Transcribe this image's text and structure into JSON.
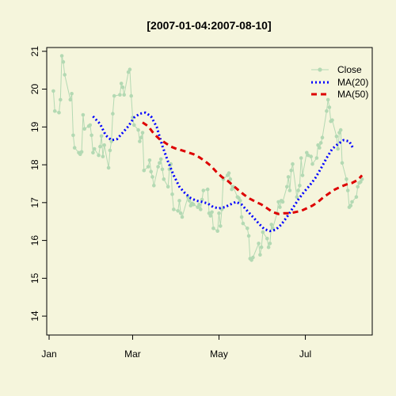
{
  "chart_data": {
    "type": "line",
    "title": "[2007-01-04:2007-08-10]",
    "xlabel": "",
    "ylabel": "",
    "x_range": [
      "2007-01-01",
      "2007-08-15"
    ],
    "ylim": [
      13.5,
      21.1
    ],
    "y_ticks": [
      14,
      15,
      16,
      17,
      18,
      19,
      20,
      21
    ],
    "x_ticks": [
      {
        "label": "Jan",
        "date": "2007-01-01"
      },
      {
        "label": "Mar",
        "date": "2007-03-01"
      },
      {
        "label": "May",
        "date": "2007-05-01"
      },
      {
        "label": "Jul",
        "date": "2007-07-01"
      }
    ],
    "grid": false,
    "legend": "top-right",
    "colors": {
      "background": "#f5f5dc",
      "close": "#b3d9b3",
      "ma20": "#0000ff",
      "ma50": "#dd0000",
      "axis": "#000000"
    },
    "series": [
      {
        "name": "Close",
        "style": "line-points",
        "color": "#b3d9b3",
        "points": [
          [
            "2007-01-04",
            19.95
          ],
          [
            "2007-01-05",
            19.42
          ],
          [
            "2007-01-08",
            19.38
          ],
          [
            "2007-01-09",
            19.72
          ],
          [
            "2007-01-10",
            20.88
          ],
          [
            "2007-01-11",
            20.72
          ],
          [
            "2007-01-12",
            20.38
          ],
          [
            "2007-01-16",
            19.72
          ],
          [
            "2007-01-17",
            19.88
          ],
          [
            "2007-01-18",
            18.78
          ],
          [
            "2007-01-19",
            18.45
          ],
          [
            "2007-01-22",
            18.32
          ],
          [
            "2007-01-23",
            18.28
          ],
          [
            "2007-01-24",
            18.34
          ],
          [
            "2007-01-25",
            19.32
          ],
          [
            "2007-01-26",
            18.95
          ],
          [
            "2007-01-29",
            19.02
          ],
          [
            "2007-01-30",
            19.05
          ],
          [
            "2007-01-31",
            18.78
          ],
          [
            "2007-02-01",
            18.32
          ],
          [
            "2007-02-02",
            18.42
          ],
          [
            "2007-02-05",
            18.25
          ],
          [
            "2007-02-06",
            18.48
          ],
          [
            "2007-02-07",
            18.76
          ],
          [
            "2007-02-08",
            18.22
          ],
          [
            "2007-02-09",
            18.52
          ],
          [
            "2007-02-12",
            17.92
          ],
          [
            "2007-02-13",
            18.38
          ],
          [
            "2007-02-14",
            18.62
          ],
          [
            "2007-02-15",
            19.35
          ],
          [
            "2007-02-16",
            19.82
          ],
          [
            "2007-02-20",
            19.85
          ],
          [
            "2007-02-21",
            20.15
          ],
          [
            "2007-02-22",
            20.05
          ],
          [
            "2007-02-23",
            19.85
          ],
          [
            "2007-02-26",
            20.45
          ],
          [
            "2007-02-27",
            20.52
          ],
          [
            "2007-02-28",
            19.82
          ],
          [
            "2007-03-01",
            19.25
          ],
          [
            "2007-03-02",
            19.05
          ],
          [
            "2007-03-05",
            18.92
          ],
          [
            "2007-03-06",
            18.62
          ],
          [
            "2007-03-07",
            18.72
          ],
          [
            "2007-03-08",
            18.85
          ],
          [
            "2007-03-09",
            17.85
          ],
          [
            "2007-03-12",
            17.95
          ],
          [
            "2007-03-13",
            18.12
          ],
          [
            "2007-03-14",
            17.82
          ],
          [
            "2007-03-15",
            17.68
          ],
          [
            "2007-03-16",
            17.45
          ],
          [
            "2007-03-19",
            17.95
          ],
          [
            "2007-03-20",
            18.05
          ],
          [
            "2007-03-21",
            18.15
          ],
          [
            "2007-03-22",
            17.88
          ],
          [
            "2007-03-23",
            17.62
          ],
          [
            "2007-03-26",
            17.42
          ],
          [
            "2007-03-27",
            17.88
          ],
          [
            "2007-03-28",
            18.02
          ],
          [
            "2007-03-29",
            17.22
          ],
          [
            "2007-03-30",
            16.82
          ],
          [
            "2007-04-02",
            16.78
          ],
          [
            "2007-04-03",
            17.05
          ],
          [
            "2007-04-04",
            16.72
          ],
          [
            "2007-04-05",
            16.62
          ],
          [
            "2007-04-09",
            17.15
          ],
          [
            "2007-04-10",
            17.05
          ],
          [
            "2007-04-11",
            16.92
          ],
          [
            "2007-04-12",
            16.98
          ],
          [
            "2007-04-13",
            16.95
          ],
          [
            "2007-04-16",
            16.88
          ],
          [
            "2007-04-17",
            16.95
          ],
          [
            "2007-04-18",
            16.82
          ],
          [
            "2007-04-19",
            17.08
          ],
          [
            "2007-04-20",
            17.32
          ],
          [
            "2007-04-23",
            17.35
          ],
          [
            "2007-04-24",
            16.72
          ],
          [
            "2007-04-25",
            16.65
          ],
          [
            "2007-04-26",
            16.75
          ],
          [
            "2007-04-27",
            16.32
          ],
          [
            "2007-04-30",
            16.25
          ],
          [
            "2007-05-01",
            16.72
          ],
          [
            "2007-05-02",
            16.38
          ],
          [
            "2007-05-03",
            16.82
          ],
          [
            "2007-05-04",
            17.62
          ],
          [
            "2007-05-07",
            17.72
          ],
          [
            "2007-05-08",
            17.78
          ],
          [
            "2007-05-09",
            17.62
          ],
          [
            "2007-05-10",
            17.35
          ],
          [
            "2007-05-11",
            17.42
          ],
          [
            "2007-05-14",
            17.15
          ],
          [
            "2007-05-15",
            17.12
          ],
          [
            "2007-05-16",
            17.05
          ],
          [
            "2007-05-17",
            16.62
          ],
          [
            "2007-05-18",
            16.45
          ],
          [
            "2007-05-21",
            16.32
          ],
          [
            "2007-05-22",
            16.12
          ],
          [
            "2007-05-23",
            15.52
          ],
          [
            "2007-05-24",
            15.48
          ],
          [
            "2007-05-25",
            15.55
          ],
          [
            "2007-05-29",
            15.92
          ],
          [
            "2007-05-30",
            15.62
          ],
          [
            "2007-05-31",
            15.82
          ],
          [
            "2007-06-01",
            16.22
          ],
          [
            "2007-06-04",
            16.05
          ],
          [
            "2007-06-05",
            15.82
          ],
          [
            "2007-06-06",
            15.92
          ],
          [
            "2007-06-07",
            16.42
          ],
          [
            "2007-06-08",
            16.32
          ],
          [
            "2007-06-11",
            16.72
          ],
          [
            "2007-06-12",
            17.02
          ],
          [
            "2007-06-13",
            16.88
          ],
          [
            "2007-06-14",
            17.05
          ],
          [
            "2007-06-15",
            17.02
          ],
          [
            "2007-06-18",
            17.42
          ],
          [
            "2007-06-19",
            17.68
          ],
          [
            "2007-06-20",
            17.32
          ],
          [
            "2007-06-21",
            17.85
          ],
          [
            "2007-06-22",
            18.02
          ],
          [
            "2007-06-25",
            17.15
          ],
          [
            "2007-06-26",
            17.32
          ],
          [
            "2007-06-27",
            17.45
          ],
          [
            "2007-06-28",
            18.18
          ],
          [
            "2007-06-29",
            17.72
          ],
          [
            "2007-07-02",
            18.32
          ],
          [
            "2007-07-03",
            18.25
          ],
          [
            "2007-07-05",
            18.22
          ],
          [
            "2007-07-06",
            18.02
          ],
          [
            "2007-07-09",
            18.18
          ],
          [
            "2007-07-10",
            18.52
          ],
          [
            "2007-07-11",
            18.45
          ],
          [
            "2007-07-12",
            18.58
          ],
          [
            "2007-07-13",
            18.72
          ],
          [
            "2007-07-16",
            19.42
          ],
          [
            "2007-07-17",
            19.72
          ],
          [
            "2007-07-18",
            19.52
          ],
          [
            "2007-07-19",
            19.15
          ],
          [
            "2007-07-20",
            19.18
          ],
          [
            "2007-07-23",
            18.75
          ],
          [
            "2007-07-24",
            18.42
          ],
          [
            "2007-07-25",
            18.85
          ],
          [
            "2007-07-26",
            18.92
          ],
          [
            "2007-07-27",
            18.05
          ],
          [
            "2007-07-30",
            17.62
          ],
          [
            "2007-07-31",
            17.32
          ],
          [
            "2007-08-01",
            16.88
          ],
          [
            "2007-08-02",
            16.92
          ],
          [
            "2007-08-03",
            17.02
          ],
          [
            "2007-08-06",
            17.15
          ],
          [
            "2007-08-07",
            17.42
          ],
          [
            "2007-08-08",
            17.52
          ],
          [
            "2007-08-09",
            17.55
          ],
          [
            "2007-08-10",
            17.62
          ]
        ]
      },
      {
        "name": "MA(20)",
        "style": "dotted",
        "color": "#0000ff",
        "points": [
          [
            "2007-02-01",
            19.28
          ],
          [
            "2007-02-06",
            19.08
          ],
          [
            "2007-02-10",
            18.78
          ],
          [
            "2007-02-14",
            18.65
          ],
          [
            "2007-02-18",
            18.68
          ],
          [
            "2007-02-22",
            18.85
          ],
          [
            "2007-02-26",
            19.02
          ],
          [
            "2007-03-02",
            19.25
          ],
          [
            "2007-03-06",
            19.35
          ],
          [
            "2007-03-10",
            19.38
          ],
          [
            "2007-03-14",
            19.28
          ],
          [
            "2007-03-18",
            19.0
          ],
          [
            "2007-03-22",
            18.5
          ],
          [
            "2007-03-26",
            18.08
          ],
          [
            "2007-03-30",
            17.72
          ],
          [
            "2007-04-03",
            17.42
          ],
          [
            "2007-04-07",
            17.25
          ],
          [
            "2007-04-11",
            17.12
          ],
          [
            "2007-04-15",
            17.05
          ],
          [
            "2007-04-19",
            17.02
          ],
          [
            "2007-04-23",
            16.98
          ],
          [
            "2007-04-27",
            16.88
          ],
          [
            "2007-05-01",
            16.85
          ],
          [
            "2007-05-05",
            16.88
          ],
          [
            "2007-05-09",
            16.95
          ],
          [
            "2007-05-13",
            17.02
          ],
          [
            "2007-05-17",
            16.95
          ],
          [
            "2007-05-21",
            16.78
          ],
          [
            "2007-05-25",
            16.62
          ],
          [
            "2007-05-29",
            16.45
          ],
          [
            "2007-06-02",
            16.3
          ],
          [
            "2007-06-06",
            16.25
          ],
          [
            "2007-06-10",
            16.28
          ],
          [
            "2007-06-14",
            16.42
          ],
          [
            "2007-06-18",
            16.62
          ],
          [
            "2007-06-22",
            16.85
          ],
          [
            "2007-06-26",
            17.08
          ],
          [
            "2007-06-30",
            17.28
          ],
          [
            "2007-07-04",
            17.45
          ],
          [
            "2007-07-08",
            17.65
          ],
          [
            "2007-07-12",
            17.9
          ],
          [
            "2007-07-16",
            18.18
          ],
          [
            "2007-07-20",
            18.42
          ],
          [
            "2007-07-24",
            18.55
          ],
          [
            "2007-07-28",
            18.65
          ],
          [
            "2007-08-01",
            18.62
          ],
          [
            "2007-08-04",
            18.42
          ]
        ]
      },
      {
        "name": "MA(50)",
        "style": "dashed",
        "color": "#dd0000",
        "points": [
          [
            "2007-03-08",
            19.12
          ],
          [
            "2007-03-12",
            19.02
          ],
          [
            "2007-03-16",
            18.82
          ],
          [
            "2007-03-20",
            18.68
          ],
          [
            "2007-03-24",
            18.58
          ],
          [
            "2007-03-28",
            18.48
          ],
          [
            "2007-04-01",
            18.42
          ],
          [
            "2007-04-05",
            18.38
          ],
          [
            "2007-04-09",
            18.33
          ],
          [
            "2007-04-13",
            18.28
          ],
          [
            "2007-04-17",
            18.2
          ],
          [
            "2007-04-21",
            18.1
          ],
          [
            "2007-04-25",
            17.98
          ],
          [
            "2007-04-29",
            17.82
          ],
          [
            "2007-05-03",
            17.68
          ],
          [
            "2007-05-07",
            17.58
          ],
          [
            "2007-05-11",
            17.45
          ],
          [
            "2007-05-15",
            17.32
          ],
          [
            "2007-05-19",
            17.2
          ],
          [
            "2007-05-23",
            17.1
          ],
          [
            "2007-05-27",
            17.02
          ],
          [
            "2007-05-31",
            16.95
          ],
          [
            "2007-06-04",
            16.85
          ],
          [
            "2007-06-08",
            16.75
          ],
          [
            "2007-06-12",
            16.7
          ],
          [
            "2007-06-16",
            16.72
          ],
          [
            "2007-06-20",
            16.72
          ],
          [
            "2007-06-24",
            16.75
          ],
          [
            "2007-06-28",
            16.78
          ],
          [
            "2007-07-02",
            16.85
          ],
          [
            "2007-07-06",
            16.92
          ],
          [
            "2007-07-10",
            17.02
          ],
          [
            "2007-07-14",
            17.15
          ],
          [
            "2007-07-18",
            17.25
          ],
          [
            "2007-07-22",
            17.35
          ],
          [
            "2007-07-26",
            17.42
          ],
          [
            "2007-07-30",
            17.48
          ],
          [
            "2007-08-03",
            17.52
          ],
          [
            "2007-08-07",
            17.6
          ],
          [
            "2007-08-10",
            17.72
          ]
        ]
      }
    ]
  }
}
